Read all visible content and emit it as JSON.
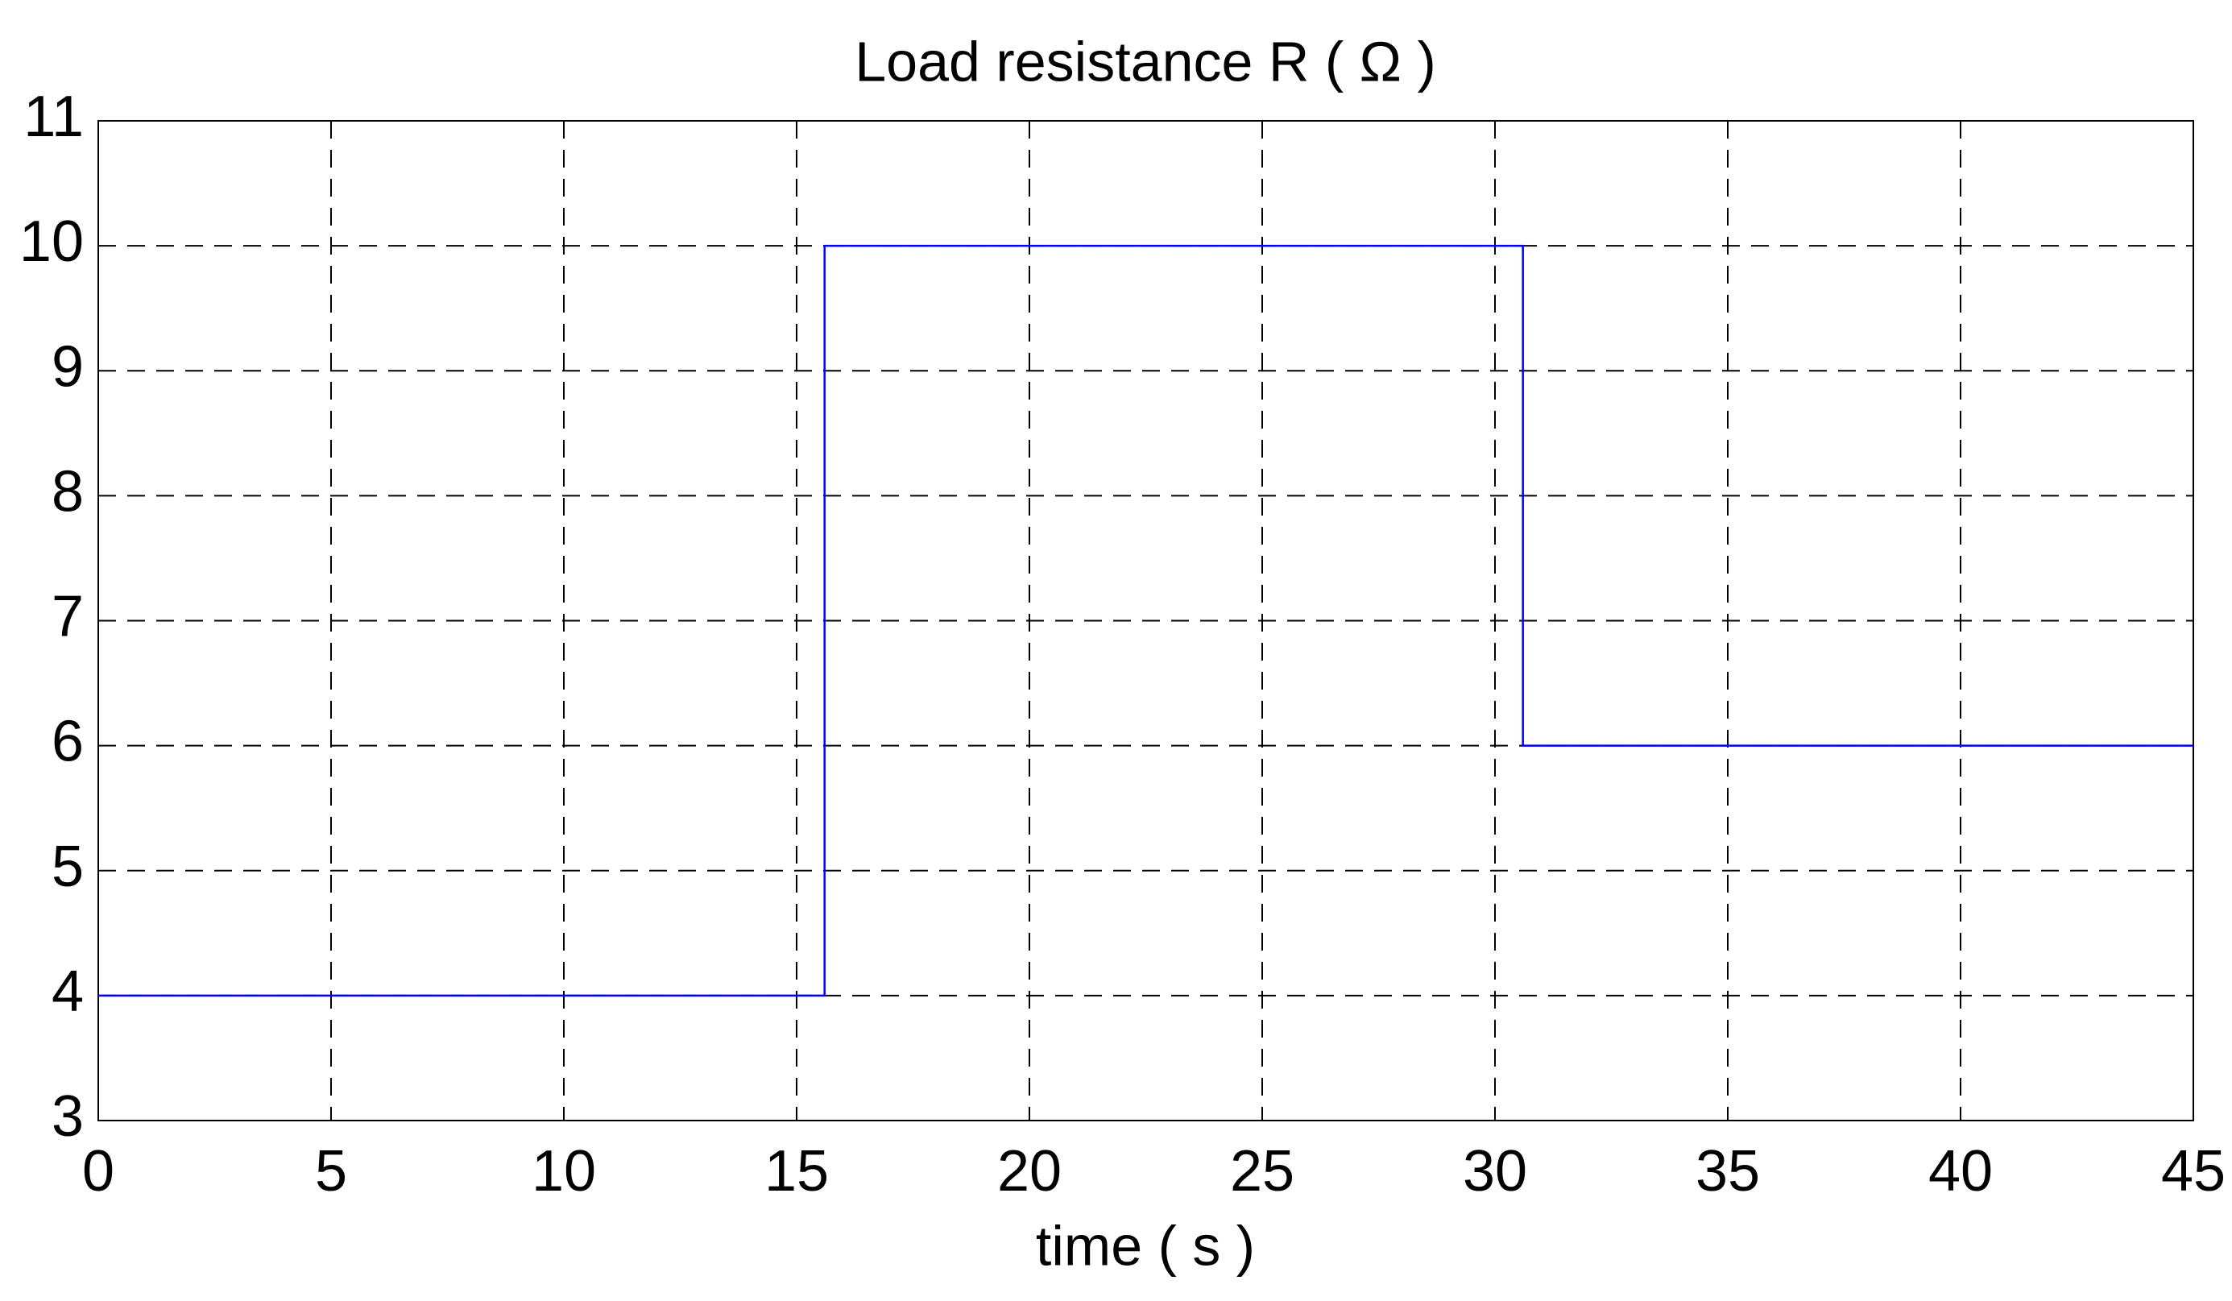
{
  "chart_data": {
    "type": "line",
    "title": "Load resistance R ( Ω )",
    "x_label": "time ( s )",
    "x": [
      0,
      15.6,
      15.6,
      30.6,
      30.6,
      45
    ],
    "series": [
      {
        "name": "R",
        "color": "#0000ff",
        "values": [
          4,
          4,
          10,
          10,
          6,
          6
        ]
      }
    ],
    "xlim": [
      0,
      45
    ],
    "xticks": [
      0,
      5,
      10,
      15,
      20,
      25,
      30,
      35,
      40,
      45
    ],
    "ylim": [
      3,
      11
    ],
    "yticks": [
      3,
      4,
      5,
      6,
      7,
      8,
      9,
      10,
      11
    ],
    "grid": true
  }
}
